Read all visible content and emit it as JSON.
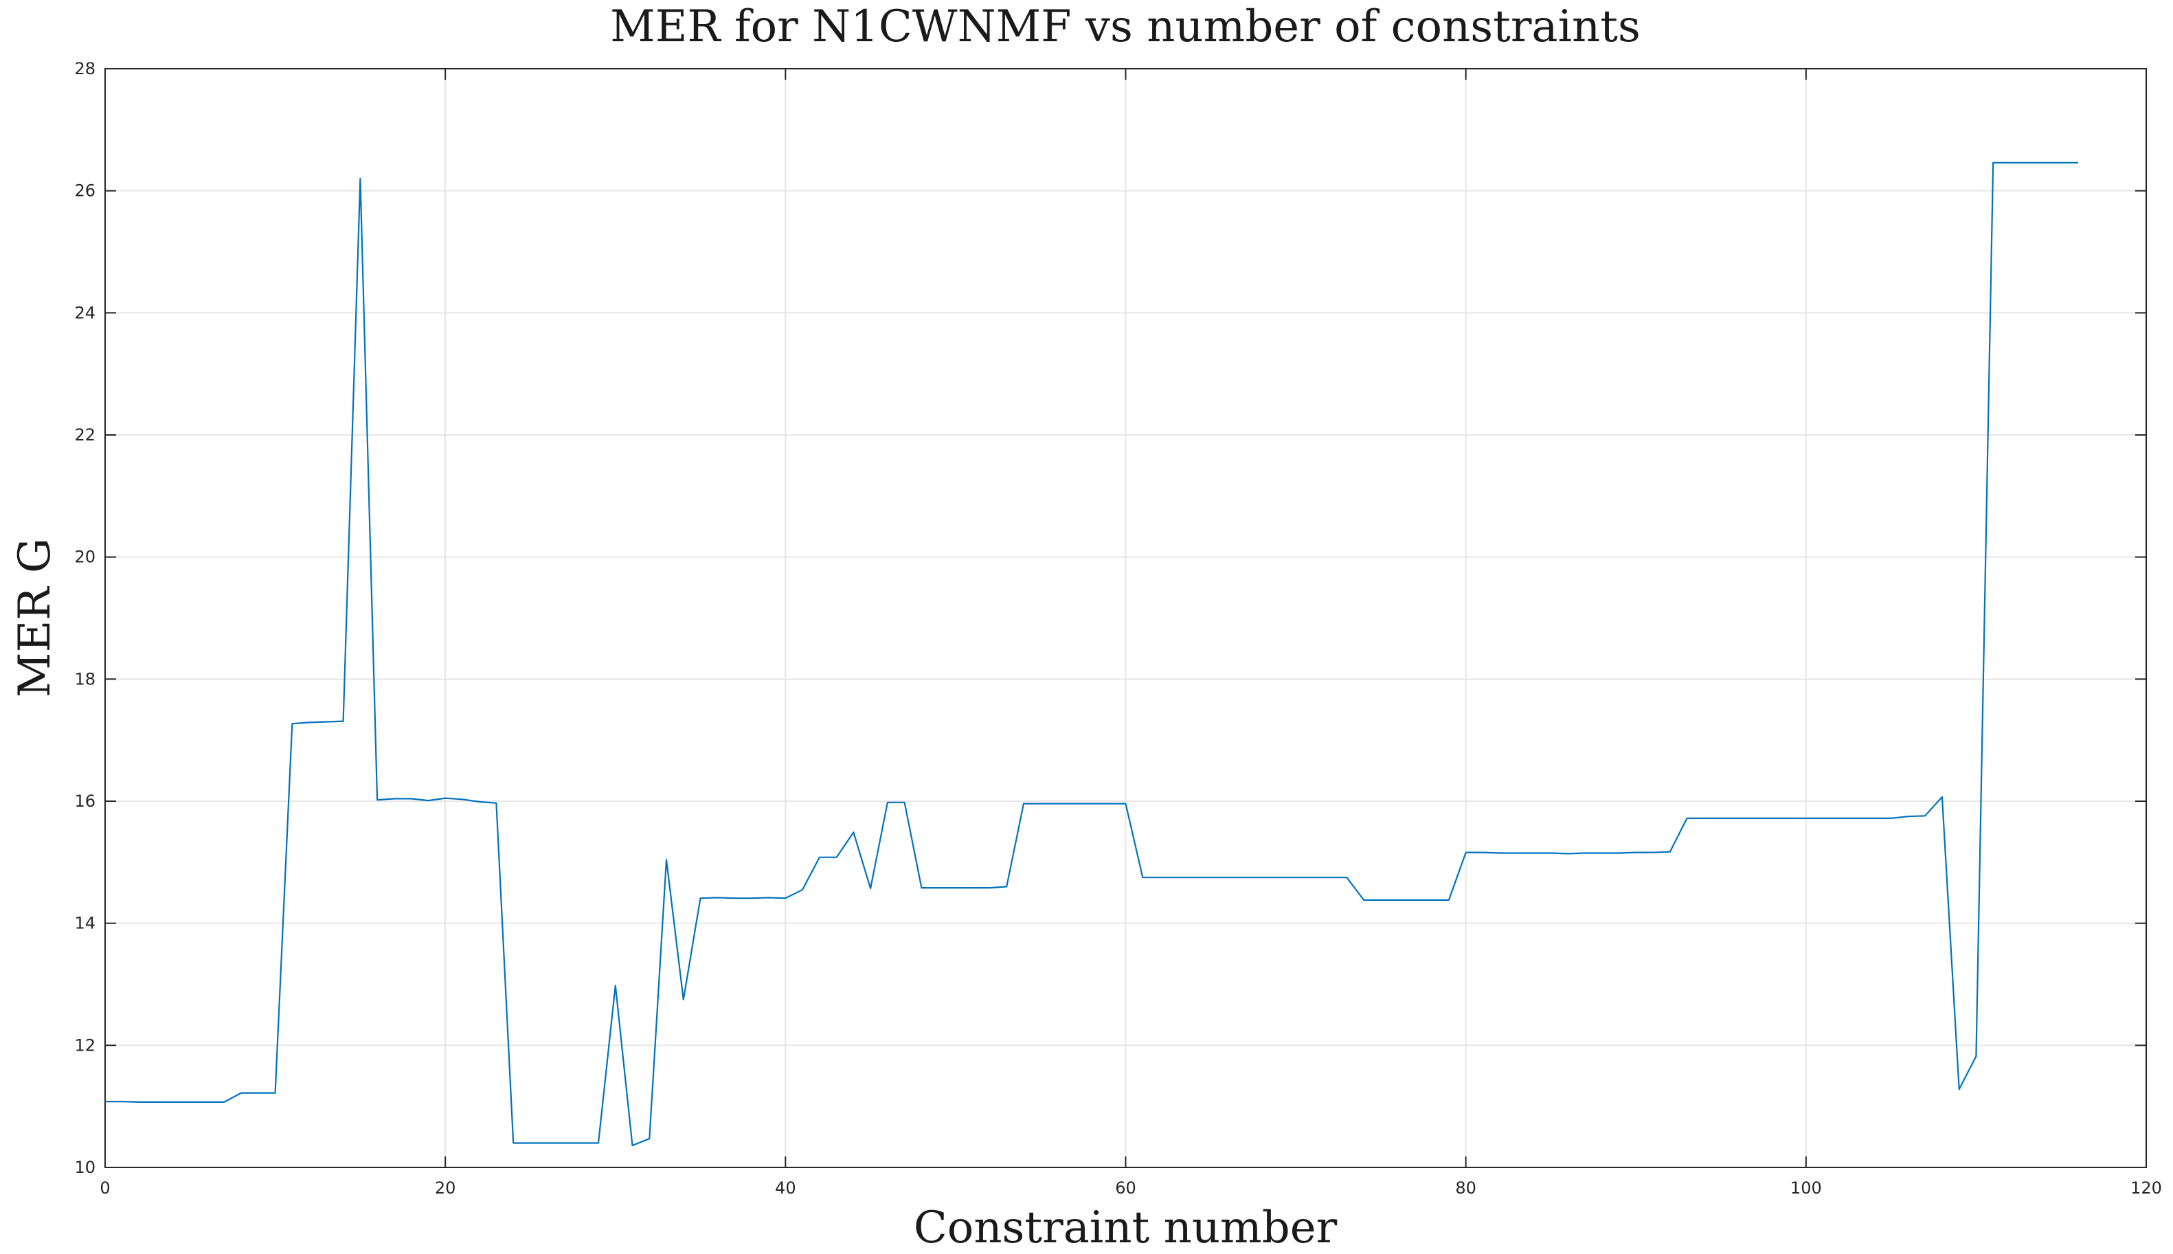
{
  "chart_data": {
    "type": "line",
    "title": "MER for N1CWNMF vs number of constraints",
    "xlabel": "Constraint number",
    "ylabel": "MER G",
    "xlim": [
      0,
      120
    ],
    "ylim": [
      10,
      28
    ],
    "xticks": [
      0,
      20,
      40,
      60,
      80,
      100,
      120
    ],
    "yticks": [
      10,
      12,
      14,
      16,
      18,
      20,
      22,
      24,
      26,
      28
    ],
    "grid": true,
    "legend": "none",
    "series": [
      {
        "color": "#0072bd",
        "x": [
          0,
          1,
          2,
          3,
          4,
          5,
          6,
          7,
          8,
          9,
          10,
          11,
          12,
          13,
          14,
          15,
          16,
          17,
          18,
          19,
          20,
          21,
          22,
          23,
          24,
          25,
          26,
          27,
          28,
          29,
          30,
          31,
          32,
          33,
          34,
          35,
          36,
          37,
          38,
          39,
          40,
          41,
          42,
          43,
          44,
          45,
          46,
          47,
          48,
          49,
          50,
          51,
          52,
          53,
          54,
          55,
          56,
          57,
          58,
          59,
          60,
          61,
          62,
          63,
          64,
          65,
          66,
          67,
          68,
          69,
          70,
          71,
          72,
          73,
          74,
          75,
          76,
          77,
          78,
          79,
          80,
          81,
          82,
          83,
          84,
          85,
          86,
          87,
          88,
          89,
          90,
          91,
          92,
          93,
          94,
          95,
          96,
          97,
          98,
          99,
          100,
          101,
          102,
          103,
          104,
          105,
          106,
          107,
          108,
          109,
          110,
          111,
          112,
          113,
          114,
          115,
          116
        ],
        "y": [
          11.08,
          11.08,
          11.07,
          11.07,
          11.07,
          11.07,
          11.07,
          11.07,
          11.22,
          11.22,
          11.22,
          17.27,
          17.29,
          17.3,
          17.31,
          26.2,
          16.02,
          16.04,
          16.04,
          16.01,
          16.05,
          16.03,
          15.99,
          15.97,
          10.4,
          10.4,
          10.4,
          10.4,
          10.4,
          10.4,
          12.98,
          10.36,
          10.47,
          15.04,
          12.75,
          14.41,
          14.42,
          14.41,
          14.41,
          14.42,
          14.41,
          14.55,
          15.08,
          15.08,
          15.49,
          14.57,
          15.98,
          15.98,
          14.58,
          14.58,
          14.58,
          14.58,
          14.58,
          14.6,
          15.96,
          15.96,
          15.96,
          15.96,
          15.96,
          15.96,
          15.96,
          14.75,
          14.75,
          14.75,
          14.75,
          14.75,
          14.75,
          14.75,
          14.75,
          14.75,
          14.75,
          14.75,
          14.75,
          14.75,
          14.38,
          14.38,
          14.38,
          14.38,
          14.38,
          14.38,
          15.16,
          15.16,
          15.15,
          15.15,
          15.15,
          15.15,
          15.14,
          15.15,
          15.15,
          15.15,
          15.16,
          15.16,
          15.17,
          15.72,
          15.72,
          15.72,
          15.72,
          15.72,
          15.72,
          15.72,
          15.72,
          15.72,
          15.72,
          15.72,
          15.72,
          15.72,
          15.75,
          15.76,
          16.07,
          11.28,
          11.82,
          26.46,
          26.46,
          26.46,
          26.46,
          26.46,
          26.46
        ]
      }
    ]
  }
}
